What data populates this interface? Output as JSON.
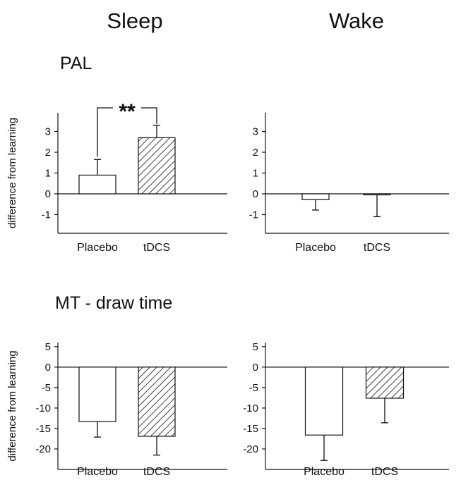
{
  "figure": {
    "col_titles": [
      "Sleep",
      "Wake"
    ],
    "row_titles": [
      "PAL",
      "MT - draw time"
    ],
    "colors": {
      "ink": "#111111",
      "bar_fill": "#ffffff",
      "hatch": "#111111"
    }
  },
  "chart_data": [
    {
      "type": "bar",
      "panel": "PAL - Sleep",
      "categories": [
        "Placebo",
        "tDCS"
      ],
      "values": [
        0.9,
        2.7
      ],
      "errors": [
        0.75,
        0.6
      ],
      "ylabel": "difference from learning",
      "yticks": [
        "3",
        "2",
        "1",
        "0",
        "-1"
      ],
      "ylim": [
        -1.9,
        3.9
      ],
      "bar_styles": [
        "plain",
        "hatched"
      ],
      "significance": "**"
    },
    {
      "type": "bar",
      "panel": "PAL - Wake",
      "categories": [
        "Placebo",
        "tDCS"
      ],
      "values": [
        -0.28,
        -0.05
      ],
      "errors": [
        0.5,
        1.05
      ],
      "ylabel": "",
      "yticks": [
        "3",
        "2",
        "1",
        "0",
        "-1"
      ],
      "ylim": [
        -1.9,
        3.9
      ],
      "bar_styles": [
        "plain",
        "hatched"
      ]
    },
    {
      "type": "bar",
      "panel": "MT - draw time - Sleep",
      "categories": [
        "Placebo",
        "tDCS"
      ],
      "values": [
        -13.3,
        -16.9
      ],
      "errors": [
        3.8,
        4.6
      ],
      "ylabel": "difference from learning",
      "yticks": [
        "5",
        "0",
        "-5",
        "-10",
        "-15",
        "-20"
      ],
      "ylim": [
        -25,
        6
      ],
      "bar_styles": [
        "plain",
        "hatched"
      ]
    },
    {
      "type": "bar",
      "panel": "MT - draw time - Wake",
      "categories": [
        "Placebo",
        "tDCS"
      ],
      "values": [
        -16.6,
        -7.6
      ],
      "errors": [
        6.2,
        6.0
      ],
      "ylabel": "",
      "yticks": [
        "5",
        "0",
        "-5",
        "-10",
        "-15",
        "-20"
      ],
      "ylim": [
        -25,
        6
      ],
      "bar_styles": [
        "plain",
        "hatched"
      ]
    }
  ]
}
